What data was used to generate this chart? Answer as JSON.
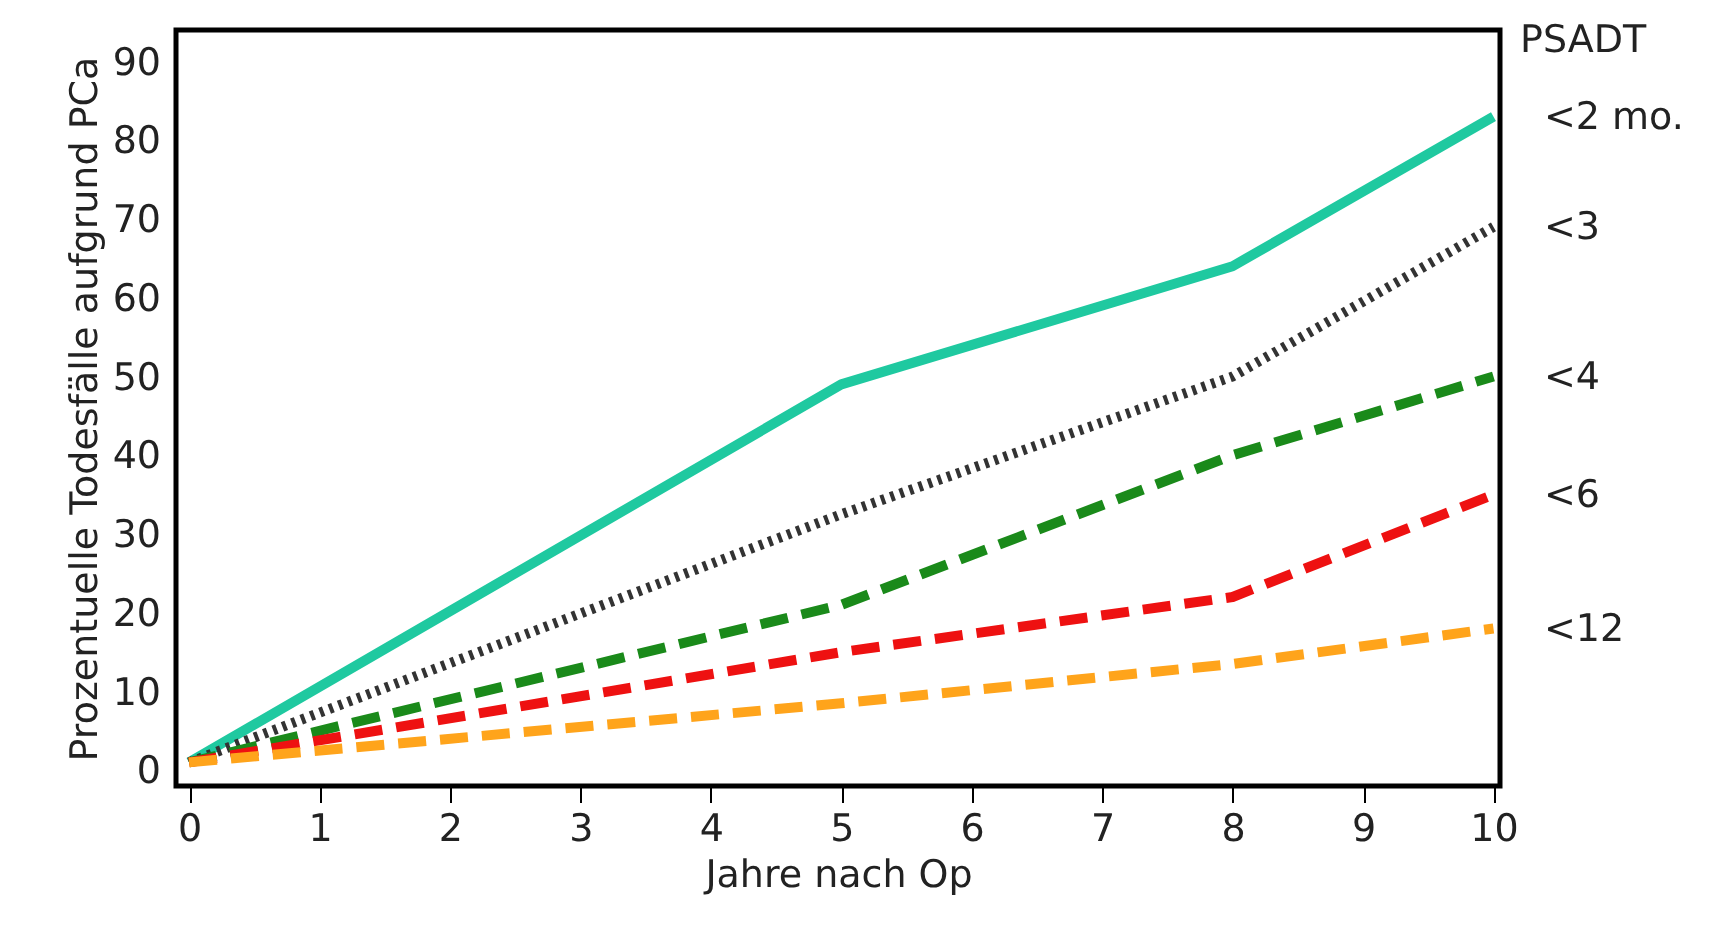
{
  "chart_data": {
    "type": "line",
    "xlabel": "Jahre nach Op",
    "ylabel": "Prozentuelle Todesfälle aufgrund PCa",
    "legend_title": "PSADT",
    "x": [
      0,
      5,
      8,
      10
    ],
    "series": [
      {
        "name": "<2 mo.",
        "color": "#1fc9a0",
        "line_style": "solid",
        "values": [
          1,
          49,
          64,
          83
        ]
      },
      {
        "name": "<3",
        "color": "#333333",
        "line_style": "dotted",
        "values": [
          1,
          32.5,
          50,
          69
        ]
      },
      {
        "name": "<4",
        "color": "#1a8a1a",
        "line_style": "dashed",
        "values": [
          1,
          21,
          40,
          50
        ]
      },
      {
        "name": "<6",
        "color": "#ee1111",
        "line_style": "dashed",
        "values": [
          1,
          15,
          22,
          35
        ]
      },
      {
        "name": "<12",
        "color": "#ffa41b",
        "line_style": "dashed",
        "values": [
          1,
          8.5,
          13.5,
          18
        ]
      }
    ],
    "xlim": [
      -0.1,
      10.05
    ],
    "ylim": [
      -2,
      94
    ],
    "xticks": [
      0,
      1,
      2,
      3,
      4,
      5,
      6,
      7,
      8,
      9,
      10
    ],
    "yticks": [
      0,
      10,
      20,
      30,
      40,
      50,
      60,
      70,
      80,
      90
    ],
    "grid": false
  }
}
